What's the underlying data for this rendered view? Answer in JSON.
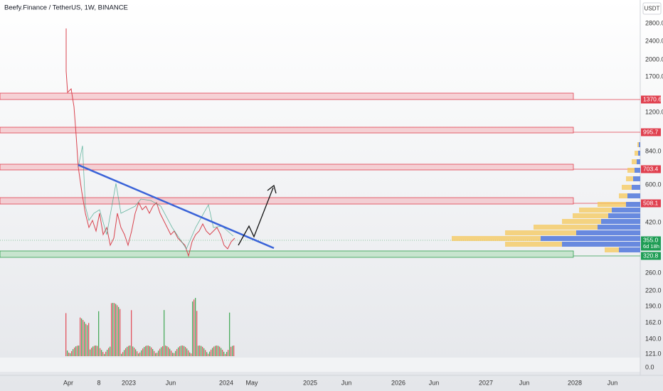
{
  "header": {
    "title": "Beefy.Finance / TetherUS, 1W, BINANCE",
    "currency": "USDT"
  },
  "price_axis": [
    "2800.0",
    "2400.0",
    "2000.0",
    "1700.0",
    "1200.0",
    "840.0",
    "600.0",
    "420.0",
    "260.0",
    "220.0",
    "190.0",
    "162.0",
    "140.0",
    "121.0",
    "0.0"
  ],
  "price_tags": [
    {
      "label": "1370.6"
    },
    {
      "label": "995.7"
    },
    {
      "label": "703.4"
    },
    {
      "label": "508.1"
    },
    {
      "label": "355.0",
      "sub": "6d 18h"
    },
    {
      "label": "320.8"
    }
  ],
  "time_axis": [
    "Apr",
    "8",
    "2023",
    "Jun",
    "2024",
    "May",
    "2025",
    "Jun",
    "2026",
    "Jun",
    "2027",
    "Jun",
    "2028",
    "Jun"
  ]
}
